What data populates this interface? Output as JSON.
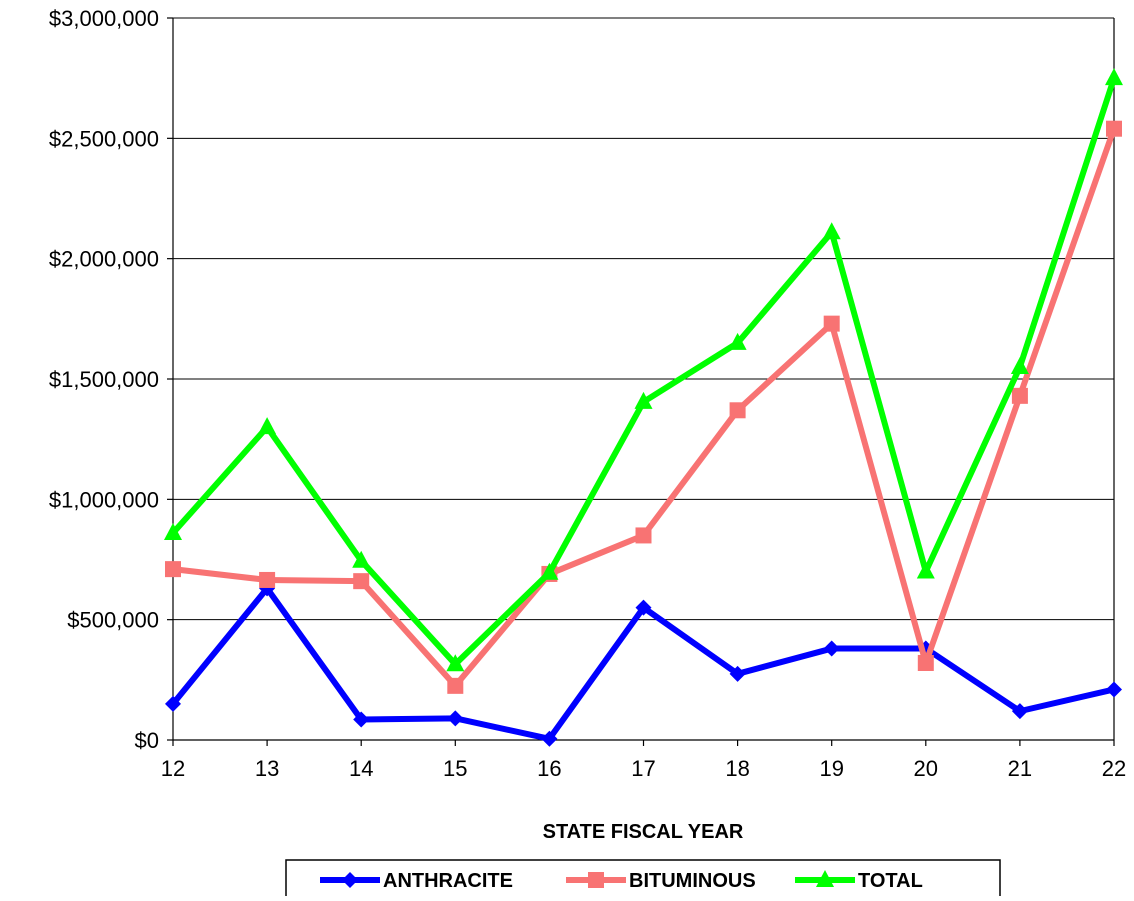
{
  "chart_data": {
    "type": "line",
    "title": "",
    "xlabel": "STATE FISCAL YEAR",
    "ylabel": "",
    "categories": [
      "12",
      "13",
      "14",
      "15",
      "16",
      "17",
      "18",
      "19",
      "20",
      "21",
      "22"
    ],
    "ylim": [
      0,
      3000000
    ],
    "yticks": [
      0,
      500000,
      1000000,
      1500000,
      2000000,
      2500000,
      3000000
    ],
    "ytick_labels": [
      "$0",
      "$500,000",
      "$1,000,000",
      "$1,500,000",
      "$2,000,000",
      "$2,500,000",
      "$3,000,000"
    ],
    "grid": "horizontal",
    "legend_position": "bottom",
    "series": [
      {
        "name": "ANTHRACITE",
        "color": "#0000FF",
        "marker": "diamond",
        "values": [
          150000,
          630000,
          85000,
          90000,
          5000,
          550000,
          275000,
          380000,
          380000,
          120000,
          210000
        ]
      },
      {
        "name": "BITUMINOUS",
        "color": "#F87373",
        "marker": "square",
        "values": [
          710000,
          665000,
          660000,
          225000,
          690000,
          850000,
          1370000,
          1730000,
          320000,
          1430000,
          2540000
        ]
      },
      {
        "name": "TOTAL",
        "color": "#00FF00",
        "marker": "triangle",
        "values": [
          860000,
          1300000,
          745000,
          315000,
          695000,
          1405000,
          1650000,
          2110000,
          700000,
          1550000,
          2750000
        ]
      }
    ]
  }
}
